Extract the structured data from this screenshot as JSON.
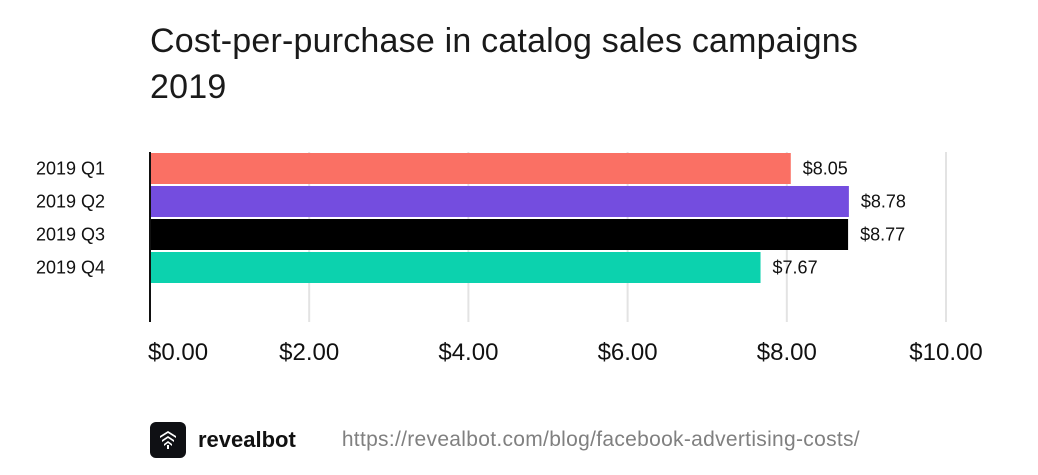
{
  "chart_data": {
    "type": "bar",
    "orientation": "horizontal",
    "title": "Cost-per-purchase in catalog sales campaigns 2019",
    "categories": [
      "2019 Q1",
      "2019 Q2",
      "2019 Q3",
      "2019 Q4"
    ],
    "values": [
      8.05,
      8.78,
      8.77,
      7.67
    ],
    "value_labels": [
      "$8.05",
      "$8.78",
      "$8.77",
      "$7.67"
    ],
    "colors": [
      "#fa7064",
      "#744ddf",
      "#000000",
      "#0cd2ae"
    ],
    "xlim": [
      0,
      10
    ],
    "x_ticks": [
      0,
      2,
      4,
      6,
      8,
      10
    ],
    "x_tick_labels": [
      "$0.00",
      "$2.00",
      "$4.00",
      "$6.00",
      "$8.00",
      "$10.00"
    ],
    "xlabel": "",
    "ylabel": "",
    "grid": "vertical",
    "legend": "none"
  },
  "footer": {
    "brand": "revealbot",
    "url": "https://revealbot.com/blog/facebook-advertising-costs/",
    "logo_icon": "revealbot-logo-icon"
  }
}
